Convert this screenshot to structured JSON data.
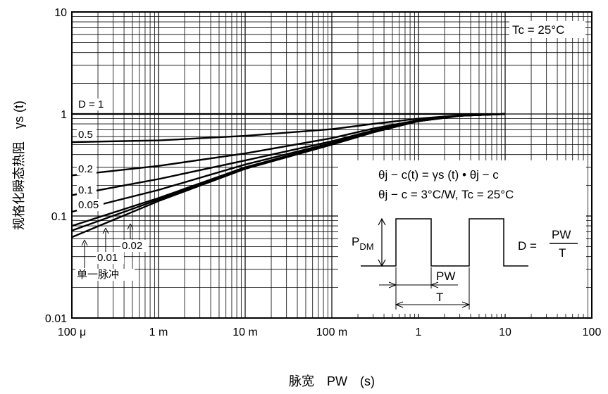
{
  "chart_data": {
    "type": "line",
    "xscale": "log",
    "yscale": "log",
    "xlim": [
      0.0001,
      100
    ],
    "ylim": [
      0.01,
      10
    ],
    "grid": true,
    "xlabel": "脉宽　PW　(s)",
    "ylabel": "规格化瞬态热阻　γs (t)",
    "xticks": [
      {
        "value": 0.0001,
        "label": "100 μ"
      },
      {
        "value": 0.001,
        "label": "1 m"
      },
      {
        "value": 0.01,
        "label": "10 m"
      },
      {
        "value": 0.1,
        "label": "100 m"
      },
      {
        "value": 1,
        "label": "1"
      },
      {
        "value": 10,
        "label": "10"
      },
      {
        "value": 100,
        "label": "100"
      }
    ],
    "yticks": [
      {
        "value": 0.01,
        "label": "0.01"
      },
      {
        "value": 0.1,
        "label": "0.1"
      },
      {
        "value": 1,
        "label": "1"
      },
      {
        "value": 10,
        "label": "10"
      }
    ],
    "series": [
      {
        "name": "D = 1",
        "x": [
          0.0001,
          10
        ],
        "y": [
          1,
          1
        ]
      },
      {
        "name": "0.5",
        "x": [
          0.0001,
          0.001,
          0.01,
          0.1,
          0.3,
          1,
          3,
          10
        ],
        "y": [
          0.53,
          0.55,
          0.61,
          0.71,
          0.8,
          0.9,
          0.97,
          1
        ]
      },
      {
        "name": "0.2",
        "x": [
          0.0001,
          0.001,
          0.01,
          0.1,
          0.3,
          1,
          3,
          10
        ],
        "y": [
          0.25,
          0.31,
          0.41,
          0.58,
          0.72,
          0.87,
          0.96,
          1
        ]
      },
      {
        "name": "0.1",
        "x": [
          0.0001,
          0.001,
          0.01,
          0.1,
          0.3,
          1,
          3,
          10
        ],
        "y": [
          0.16,
          0.23,
          0.35,
          0.54,
          0.69,
          0.86,
          0.96,
          1
        ]
      },
      {
        "name": "0.05",
        "x": [
          0.0001,
          0.001,
          0.01,
          0.1,
          0.3,
          1,
          3,
          10
        ],
        "y": [
          0.11,
          0.18,
          0.32,
          0.52,
          0.68,
          0.85,
          0.96,
          1
        ]
      },
      {
        "name": "0.02",
        "x": [
          0.0001,
          0.001,
          0.01,
          0.1,
          0.3,
          1,
          3,
          10
        ],
        "y": [
          0.08,
          0.15,
          0.3,
          0.51,
          0.67,
          0.85,
          0.96,
          1
        ]
      },
      {
        "name": "0.01",
        "x": [
          0.0001,
          0.001,
          0.01,
          0.1,
          0.3,
          1,
          3,
          10
        ],
        "y": [
          0.072,
          0.145,
          0.295,
          0.505,
          0.67,
          0.85,
          0.96,
          1
        ]
      },
      {
        "name": "单一脉冲",
        "x": [
          0.0001,
          0.001,
          0.01,
          0.1,
          0.3,
          1,
          3,
          10
        ],
        "y": [
          0.062,
          0.14,
          0.29,
          0.5,
          0.66,
          0.85,
          0.96,
          1
        ]
      }
    ],
    "labels": {
      "d1": "D = 1",
      "d05": "0.5",
      "d02": "0.2",
      "d01": "0.1",
      "d005": "0.05",
      "d002": "0.02",
      "d0_01": "0.01",
      "single": "单一脉冲"
    },
    "annotations": {
      "tc": "Tc = 25°C",
      "eq1": "θj − c(t) = γs (t) • θj − c",
      "eq2": "θj − c = 3°C/W, Tc = 25°C",
      "pdm_main": "P",
      "pdm_sub": "DM",
      "pw": "PW",
      "t": "T",
      "duty_lhs": "D =",
      "duty_num": "PW",
      "duty_den": "T"
    }
  }
}
